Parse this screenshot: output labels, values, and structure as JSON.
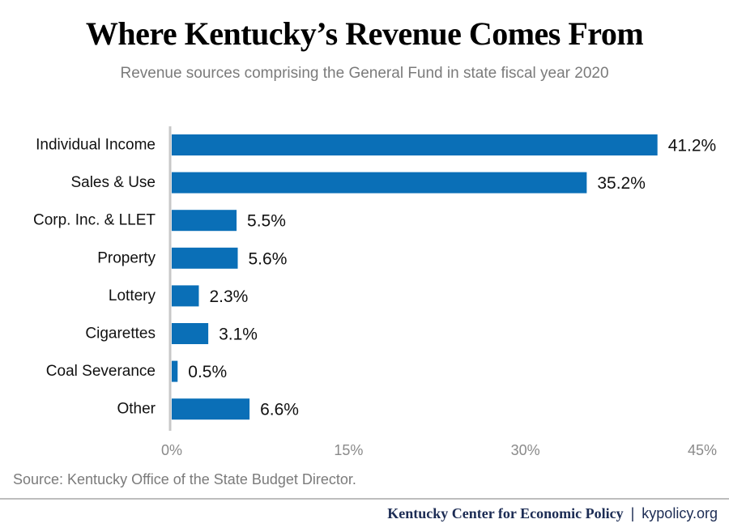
{
  "title": "Where Kentucky’s Revenue Comes From",
  "subtitle": "Revenue sources comprising the General Fund in state fiscal year 2020",
  "source": "Source: Kentucky Office of the State Budget Director.",
  "footer": {
    "org": "Kentucky Center for Economic Policy",
    "separator": "|",
    "url": "kypolicy.org"
  },
  "colors": {
    "bar": "#0a6fb7",
    "axis_line": "#c8c8c8",
    "tick_text": "#8a8a8a"
  },
  "chart_data": {
    "type": "bar",
    "orientation": "horizontal",
    "categories": [
      "Individual Income",
      "Sales & Use",
      "Corp. Inc. & LLET",
      "Property",
      "Lottery",
      "Cigarettes",
      "Coal Severance",
      "Other"
    ],
    "values": [
      41.2,
      35.2,
      5.5,
      5.6,
      2.3,
      3.1,
      0.5,
      6.6
    ],
    "data_labels": [
      "41.2%",
      "35.2%",
      "5.5%",
      "5.6%",
      "2.3%",
      "3.1%",
      "0.5%",
      "6.6%"
    ],
    "xlim": [
      0,
      45
    ],
    "x_ticks": [
      0,
      15,
      30,
      45
    ],
    "x_tick_labels": [
      "0%",
      "15%",
      "30%",
      "45%"
    ],
    "grid": false,
    "legend": "none"
  }
}
